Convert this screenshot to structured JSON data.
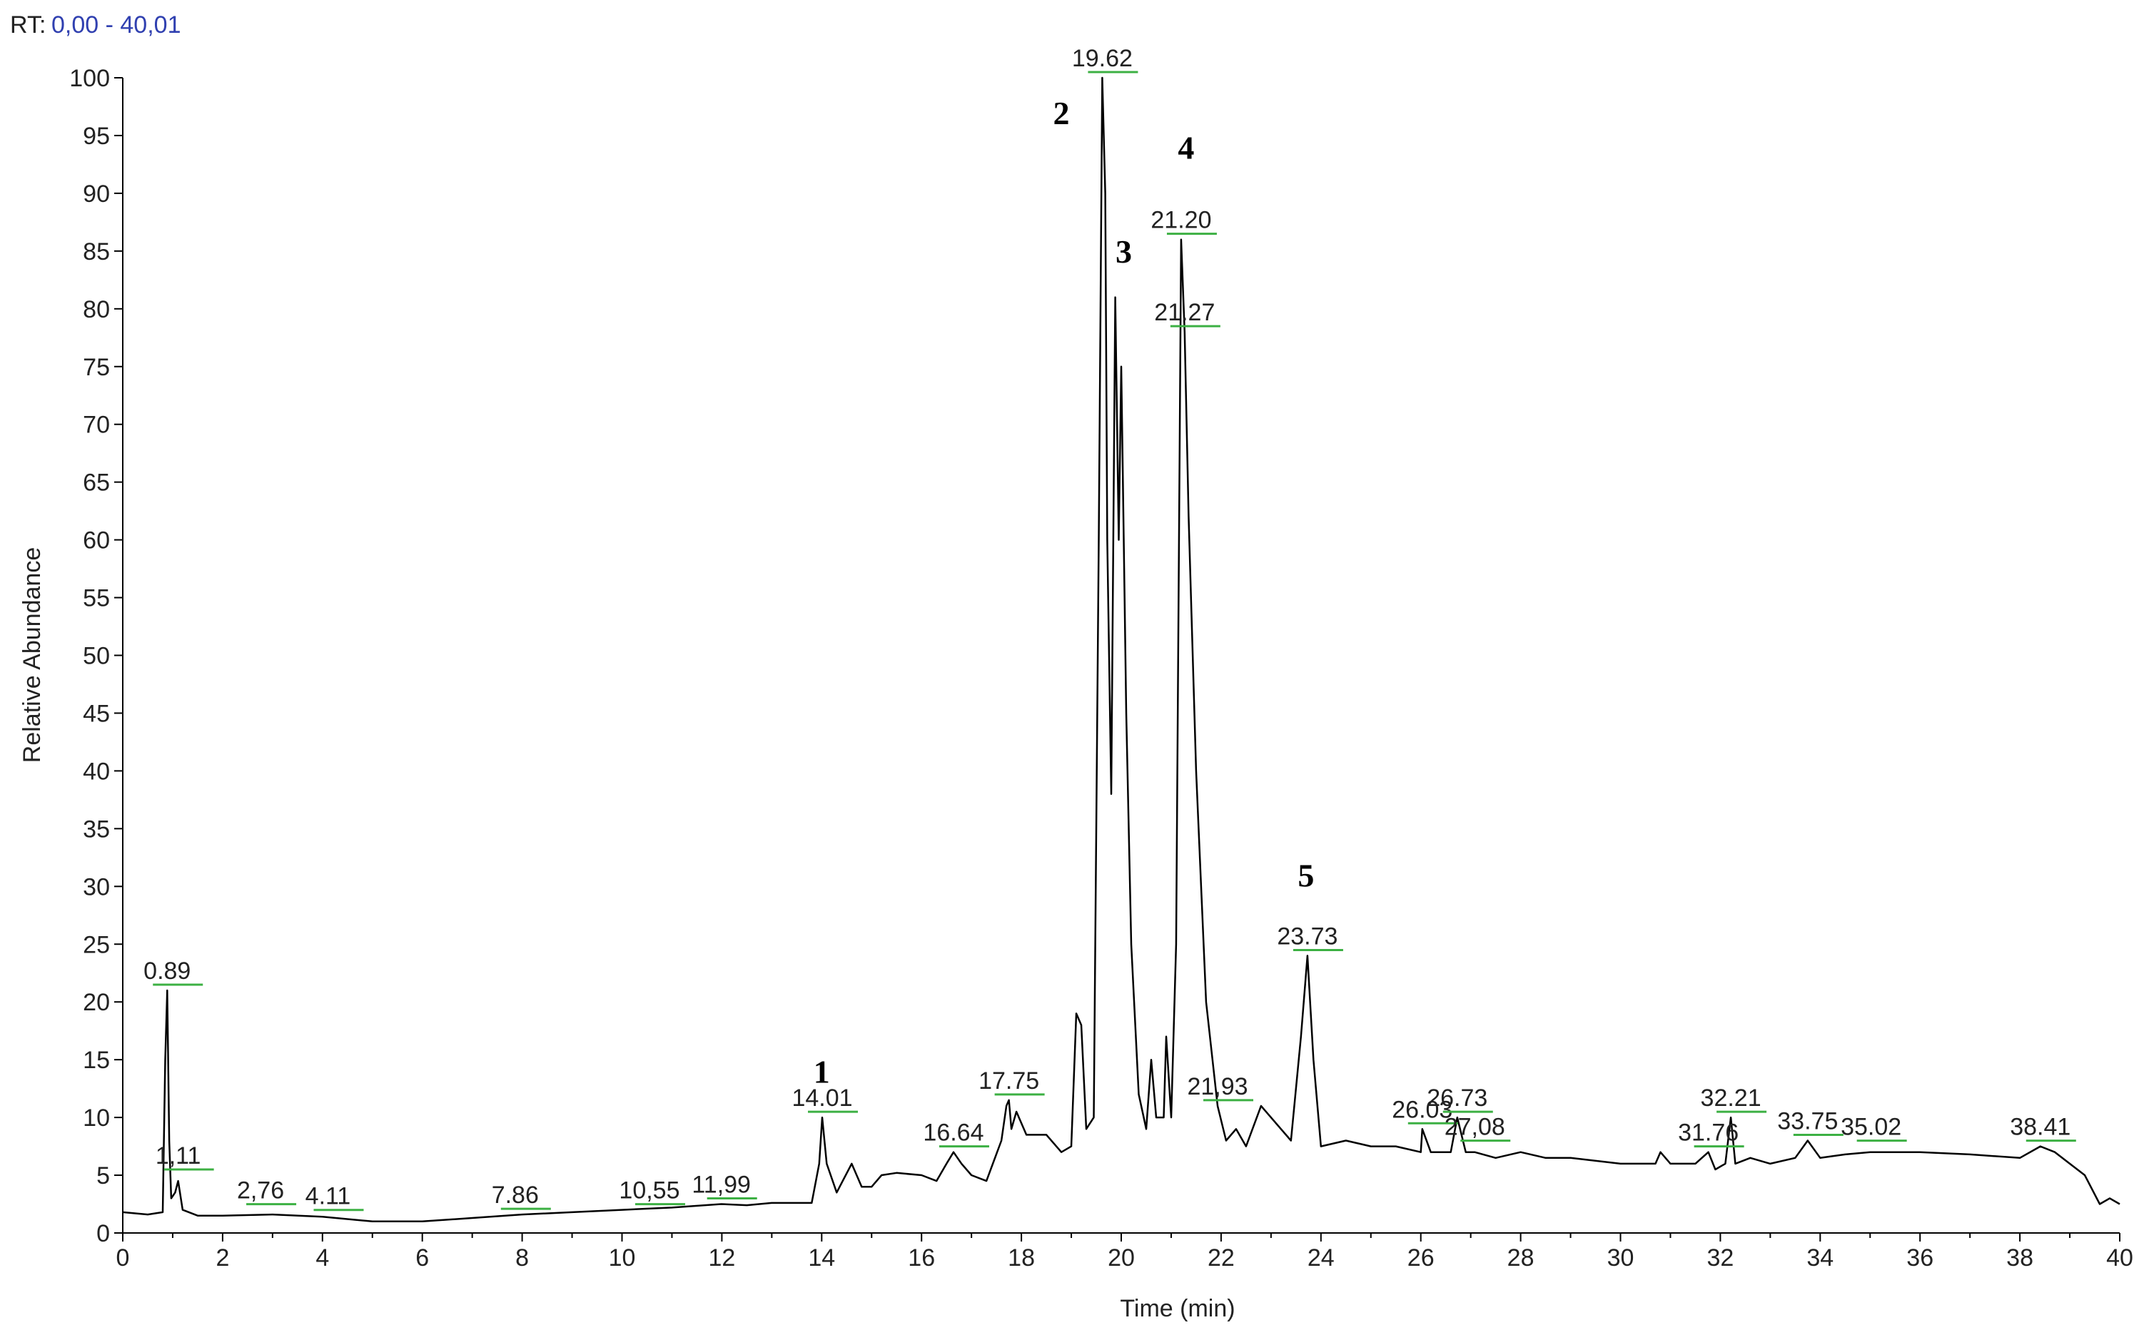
{
  "chart_data": {
    "type": "line",
    "rt_label": "RT:",
    "rt_range": "0,00 - 40,01",
    "xlabel": "Time (min)",
    "ylabel": "Relative Abundance",
    "xlim": [
      0,
      40
    ],
    "xticks": [
      0,
      2,
      4,
      6,
      8,
      10,
      12,
      14,
      16,
      18,
      20,
      22,
      24,
      26,
      28,
      30,
      32,
      34,
      36,
      38,
      40
    ],
    "ylim": [
      0,
      100
    ],
    "yticks": [
      0,
      5,
      10,
      15,
      20,
      25,
      30,
      35,
      40,
      45,
      50,
      55,
      60,
      65,
      70,
      75,
      80,
      85,
      90,
      95,
      100
    ],
    "color": "#000000",
    "x": [
      0,
      0.5,
      0.8,
      0.85,
      0.89,
      0.93,
      0.97,
      1.05,
      1.11,
      1.2,
      1.5,
      2,
      3,
      4,
      5,
      6,
      7,
      8,
      9,
      10,
      11,
      11.99,
      12.5,
      13,
      13.8,
      13.95,
      14.01,
      14.1,
      14.3,
      14.6,
      14.8,
      15,
      15.2,
      15.5,
      16,
      16.3,
      16.5,
      16.64,
      16.8,
      17,
      17.3,
      17.6,
      17.7,
      17.75,
      17.8,
      17.9,
      18.1,
      18.5,
      18.8,
      19.0,
      19.1,
      19.2,
      19.3,
      19.45,
      19.55,
      19.62,
      19.68,
      19.72,
      19.8,
      19.88,
      19.95,
      20.0,
      20.1,
      20.2,
      20.35,
      20.5,
      20.6,
      20.7,
      20.85,
      20.9,
      21.0,
      21.1,
      21.2,
      21.27,
      21.35,
      21.5,
      21.7,
      21.93,
      22.1,
      22.3,
      22.5,
      22.8,
      23.0,
      23.2,
      23.4,
      23.6,
      23.73,
      23.85,
      24.0,
      24.5,
      25,
      25.5,
      26.0,
      26.03,
      26.2,
      26.6,
      26.73,
      26.9,
      27.08,
      27.5,
      28,
      28.5,
      29,
      30,
      30.7,
      30.8,
      31,
      31.5,
      31.76,
      31.9,
      32.1,
      32.21,
      32.3,
      32.6,
      33,
      33.5,
      33.75,
      34,
      34.5,
      35,
      36,
      37,
      38,
      38.41,
      38.7,
      39,
      39.3,
      39.6,
      39.8,
      40
    ],
    "values": [
      1.8,
      1.6,
      1.8,
      15,
      21,
      8,
      3,
      3.5,
      4.5,
      2,
      1.5,
      1.5,
      1.6,
      1.4,
      1.0,
      1.0,
      1.3,
      1.6,
      1.8,
      2.0,
      2.2,
      2.5,
      2.4,
      2.6,
      2.6,
      6,
      10,
      6,
      3.5,
      6,
      4,
      4,
      5,
      5.2,
      5,
      4.5,
      6,
      7,
      6,
      5,
      4.5,
      8,
      11,
      11.5,
      9,
      10.5,
      8.5,
      8.5,
      7,
      7.5,
      19,
      18,
      9,
      10,
      60,
      100,
      90,
      60,
      38,
      81,
      60,
      75,
      45,
      25,
      12,
      9,
      15,
      10,
      10,
      17,
      10,
      25,
      86,
      78,
      62,
      40,
      20,
      11,
      8,
      9,
      7.5,
      11,
      10,
      9,
      8,
      17,
      24,
      15,
      7.5,
      8,
      7.5,
      7.5,
      7,
      9,
      7,
      7,
      10,
      7,
      7,
      6.5,
      7,
      6.5,
      6.5,
      6,
      6,
      7,
      6,
      6,
      7,
      5.5,
      6,
      10,
      6,
      6.5,
      6,
      6.5,
      8,
      6.5,
      6.8,
      7,
      7,
      6.8,
      6.5,
      7.5,
      7,
      6,
      5,
      2.5,
      3,
      2.5
    ],
    "peak_labels": [
      {
        "text": "0.89",
        "x": 0.89,
        "y": 21
      },
      {
        "text": "1,11",
        "x": 1.11,
        "y": 5
      },
      {
        "text": "2,76",
        "x": 2.76,
        "y": 2
      },
      {
        "text": "4.11",
        "x": 4.11,
        "y": 1.5
      },
      {
        "text": "7.86",
        "x": 7.86,
        "y": 1.6
      },
      {
        "text": "10,55",
        "x": 10.55,
        "y": 2
      },
      {
        "text": "11,99",
        "x": 11.99,
        "y": 2.5
      },
      {
        "text": "14.01",
        "x": 14.01,
        "y": 10
      },
      {
        "text": "16.64",
        "x": 16.64,
        "y": 7
      },
      {
        "text": "17.75",
        "x": 17.75,
        "y": 11.5
      },
      {
        "text": "19.62",
        "x": 19.62,
        "y": 100
      },
      {
        "text": "21.20",
        "x": 21.2,
        "y": 86
      },
      {
        "text": "21.27",
        "x": 21.27,
        "y": 78
      },
      {
        "text": "21,93",
        "x": 21.93,
        "y": 11
      },
      {
        "text": "23.73",
        "x": 23.73,
        "y": 24
      },
      {
        "text": "26.03",
        "x": 26.03,
        "y": 9
      },
      {
        "text": "26.73",
        "x": 26.73,
        "y": 10
      },
      {
        "text": "27,08",
        "x": 27.08,
        "y": 7.5
      },
      {
        "text": "31.76",
        "x": 31.76,
        "y": 7
      },
      {
        "text": "32.21",
        "x": 32.21,
        "y": 10
      },
      {
        "text": "33.75",
        "x": 33.75,
        "y": 8
      },
      {
        "text": "35.02",
        "x": 35.02,
        "y": 7.5
      },
      {
        "text": "38.41",
        "x": 38.41,
        "y": 7.5
      }
    ],
    "peak_numbers": [
      {
        "text": "1",
        "x": 14,
        "y": 13
      },
      {
        "text": "2",
        "x": 18.8,
        "y": 96
      },
      {
        "text": "3",
        "x": 20.05,
        "y": 84
      },
      {
        "text": "4",
        "x": 21.3,
        "y": 93
      },
      {
        "text": "5",
        "x": 23.7,
        "y": 30
      }
    ]
  }
}
